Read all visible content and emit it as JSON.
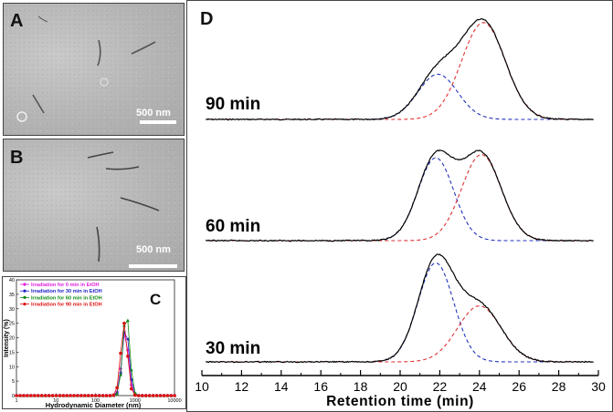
{
  "panels": {
    "a": {
      "letter": "A",
      "scale": "500 nm"
    },
    "b": {
      "letter": "B",
      "scale": "500 nm"
    },
    "c": {
      "letter": "C"
    },
    "d": {
      "letter": "D"
    }
  },
  "chart_data": [
    {
      "type": "scatter",
      "panel": "C",
      "xlabel": "Hydrodynamic Diameter (nm)",
      "ylabel": "Intensity (%)",
      "xscale": "log",
      "xlim": [
        1,
        10000
      ],
      "ylim": [
        0,
        40
      ],
      "yticks": [
        0,
        5,
        10,
        15,
        20,
        25,
        30,
        35,
        40
      ],
      "xticks": [
        1,
        10,
        100,
        1000,
        10000
      ],
      "xtick_labels": [
        "1",
        "10",
        "100",
        "1000",
        "10000"
      ],
      "legend_position": "top-left",
      "series": [
        {
          "name": "Irradiation for 0 min in EtOH",
          "color": "#e01ee0",
          "marker": "diamond",
          "peak_x": 560,
          "peak_y": 22
        },
        {
          "name": "Irradiation for 30 min in EtOH",
          "color": "#2222cc",
          "marker": "triangle-left",
          "peak_x": 580,
          "peak_y": 24
        },
        {
          "name": "Irradiation for 60 min in EtOH",
          "color": "#108a10",
          "marker": "triangle-up",
          "peak_x": 600,
          "peak_y": 29
        },
        {
          "name": "Irradiation for 90 min in EtOH",
          "color": "#dd1111",
          "marker": "circle",
          "peak_x": 530,
          "peak_y": 25
        }
      ]
    },
    {
      "type": "line",
      "panel": "D",
      "xlabel": "Retention time (min)",
      "ylabel": "",
      "xlim": [
        10,
        30
      ],
      "xticks": [
        10,
        12,
        14,
        16,
        18,
        20,
        22,
        24,
        26,
        28,
        30
      ],
      "traces": [
        {
          "label": "90 min",
          "fits": [
            {
              "center": 21.9,
              "height": 0.42,
              "width": 1.0,
              "color": "#2233bb"
            },
            {
              "center": 24.2,
              "height": 0.9,
              "width": 1.1,
              "color": "#e03333"
            }
          ]
        },
        {
          "label": "60 min",
          "fits": [
            {
              "center": 21.8,
              "height": 0.77,
              "width": 0.9,
              "color": "#2233bb"
            },
            {
              "center": 24.1,
              "height": 0.8,
              "width": 1.0,
              "color": "#e03333"
            }
          ]
        },
        {
          "label": "30 min",
          "fits": [
            {
              "center": 21.8,
              "height": 0.92,
              "width": 0.9,
              "color": "#2233bb"
            },
            {
              "center": 24.0,
              "height": 0.52,
              "width": 1.1,
              "color": "#e03333"
            }
          ]
        }
      ]
    }
  ]
}
